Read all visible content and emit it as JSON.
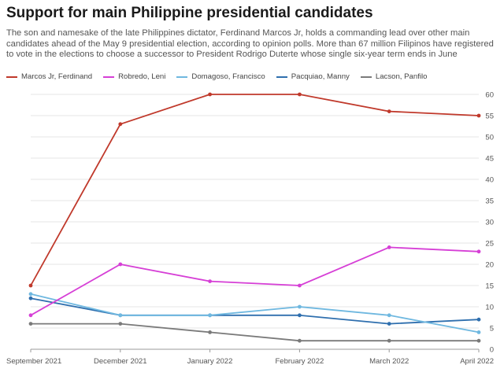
{
  "chart_data": {
    "type": "line",
    "title": "Support for main Philippine presidential candidates",
    "subtitle": "The son and namesake of the late Philippines dictator, Ferdinand Marcos Jr, holds a commanding lead over other main candidates ahead of the May 9 presidential election, according to opinion polls. More than 67 million Filipinos have registered to vote in the elections to choose a successor to President Rodrigo Duterte whose single six-year term ends in June",
    "categories": [
      "September 2021",
      "December 2021",
      "January 2022",
      "February 2022",
      "March 2022",
      "April 2022"
    ],
    "ylim": [
      0,
      60
    ],
    "yticks": [
      0,
      5,
      10,
      15,
      20,
      25,
      30,
      35,
      40,
      45,
      50,
      55,
      60
    ],
    "grid": true,
    "legend_position": "top",
    "series": [
      {
        "name": "Marcos Jr, Ferdinand",
        "color": "#c0392b",
        "values": [
          15,
          53,
          60,
          60,
          56,
          55
        ]
      },
      {
        "name": "Robredo, Leni",
        "color": "#d63fd6",
        "values": [
          8,
          20,
          16,
          15,
          24,
          23
        ]
      },
      {
        "name": "Domagoso, Francisco",
        "color": "#6fb8e0",
        "values": [
          13,
          8,
          8,
          10,
          8,
          4
        ]
      },
      {
        "name": "Pacquiao, Manny",
        "color": "#2f6fae",
        "values": [
          12,
          8,
          8,
          8,
          6,
          7
        ]
      },
      {
        "name": "Lacson, Panfilo",
        "color": "#7a7a7a",
        "values": [
          6,
          6,
          4,
          2,
          2,
          2
        ]
      }
    ]
  }
}
